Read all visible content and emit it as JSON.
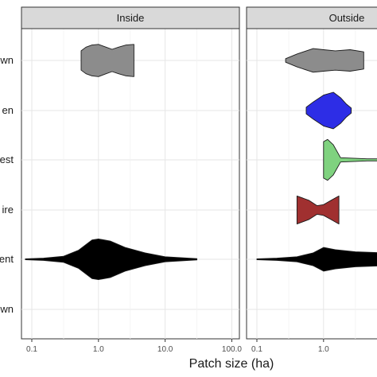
{
  "chart_data": {
    "type": "violin",
    "orientation": "horizontal",
    "xlabel": "Patch size (ha)",
    "xscale": "log10",
    "xlim": [
      0.07,
      130
    ],
    "x_ticks": [
      0.1,
      1.0,
      10.0,
      100.0
    ],
    "x_tick_labels": [
      "0.1",
      "1.0",
      "10.0",
      "100.0"
    ],
    "grid": true,
    "panels": [
      "Inside",
      "Outside"
    ],
    "y_labels_visible": [
      "wn",
      "en",
      "est",
      "ire",
      "ent",
      "wn"
    ],
    "series": [
      {
        "panel": "Inside",
        "row": 0,
        "color": "#8c8c8c",
        "profile": [
          [
            0.55,
            0.45
          ],
          [
            0.65,
            0.62
          ],
          [
            0.8,
            0.72
          ],
          [
            1.0,
            0.75
          ],
          [
            1.3,
            0.62
          ],
          [
            1.6,
            0.52
          ],
          [
            2.0,
            0.62
          ],
          [
            2.6,
            0.72
          ],
          [
            3.4,
            0.75
          ]
        ]
      },
      {
        "panel": "Inside",
        "row": 4,
        "color": "#000000",
        "profile": [
          [
            0.08,
            0.02
          ],
          [
            0.15,
            0.05
          ],
          [
            0.3,
            0.14
          ],
          [
            0.5,
            0.42
          ],
          [
            0.8,
            0.9
          ],
          [
            1.0,
            0.95
          ],
          [
            1.5,
            0.85
          ],
          [
            2.5,
            0.55
          ],
          [
            5,
            0.3
          ],
          [
            10,
            0.12
          ],
          [
            30,
            0.03
          ]
        ]
      },
      {
        "panel": "Outside",
        "row": 0,
        "color": "#8c8c8c",
        "profile": [
          [
            0.27,
            0.08
          ],
          [
            0.4,
            0.3
          ],
          [
            0.7,
            0.55
          ],
          [
            1.0,
            0.5
          ],
          [
            1.5,
            0.45
          ],
          [
            2.5,
            0.5
          ],
          [
            4,
            0.4
          ]
        ]
      },
      {
        "panel": "Outside",
        "row": 1,
        "color": "#2d2de6",
        "profile": [
          [
            0.55,
            0.15
          ],
          [
            0.7,
            0.4
          ],
          [
            1.0,
            0.72
          ],
          [
            1.4,
            0.85
          ],
          [
            1.8,
            0.6
          ],
          [
            2.2,
            0.3
          ],
          [
            2.6,
            0.12
          ]
        ]
      },
      {
        "panel": "Outside",
        "row": 2,
        "color": "#7fd27f",
        "profile": [
          [
            1.0,
            0.85
          ],
          [
            1.15,
            0.95
          ],
          [
            1.4,
            0.7
          ],
          [
            1.8,
            0.1
          ],
          [
            3,
            0.07
          ],
          [
            4.5,
            0.05
          ],
          [
            6.5,
            0.05
          ]
        ]
      },
      {
        "panel": "Outside",
        "row": 3,
        "color": "#a03030",
        "profile": [
          [
            0.4,
            0.65
          ],
          [
            0.6,
            0.45
          ],
          [
            0.8,
            0.2
          ],
          [
            1.0,
            0.25
          ],
          [
            1.3,
            0.45
          ],
          [
            1.7,
            0.65
          ]
        ]
      },
      {
        "panel": "Outside",
        "row": 4,
        "color": "#000000",
        "profile": [
          [
            0.1,
            0.02
          ],
          [
            0.2,
            0.05
          ],
          [
            0.4,
            0.12
          ],
          [
            0.7,
            0.3
          ],
          [
            1.0,
            0.55
          ],
          [
            1.5,
            0.45
          ],
          [
            3,
            0.35
          ],
          [
            8,
            0.3
          ]
        ]
      }
    ]
  }
}
